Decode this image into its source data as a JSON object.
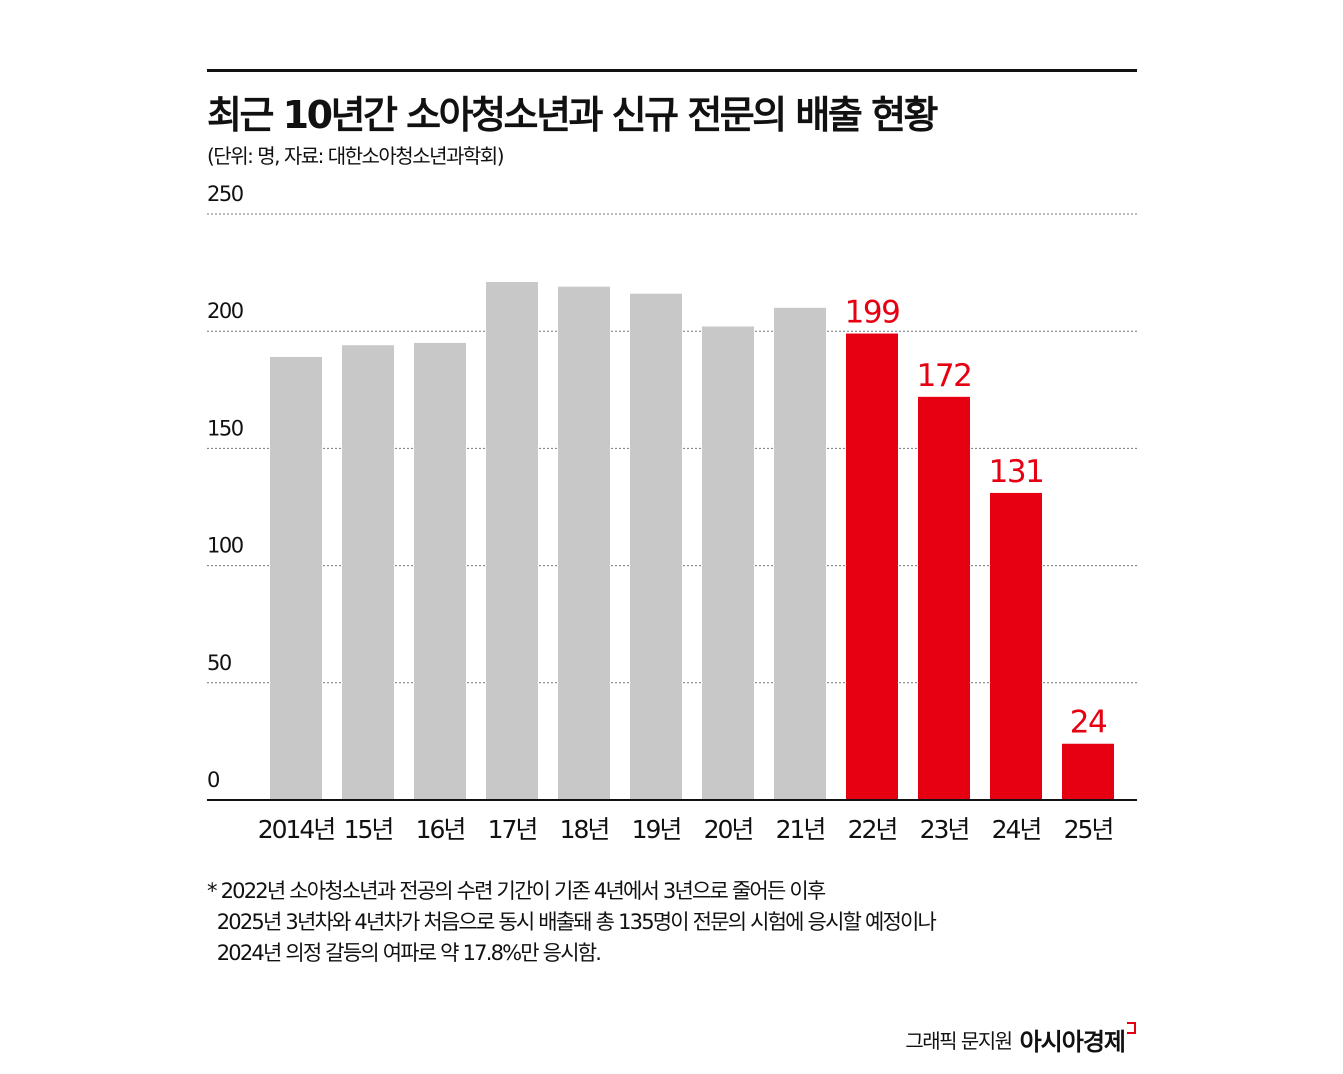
{
  "title": "최근 10년간 소아청소년과 신규 전문의 배출 현황",
  "subtitle": "(단위: 명, 자료: 대한소아청소년과학회)",
  "chart_data": {
    "type": "bar",
    "categories": [
      "2014년",
      "15년",
      "16년",
      "17년",
      "18년",
      "19년",
      "20년",
      "21년",
      "22년",
      "23년",
      "24년",
      "25년"
    ],
    "values": [
      189,
      194,
      195,
      221,
      219,
      216,
      202,
      210,
      199,
      172,
      131,
      24
    ],
    "data_labels": [
      null,
      null,
      null,
      null,
      null,
      null,
      null,
      null,
      "199",
      "172",
      "131",
      "24"
    ],
    "highlighted": [
      false,
      false,
      false,
      false,
      false,
      false,
      false,
      false,
      true,
      true,
      true,
      true
    ],
    "ylim": [
      0,
      250
    ],
    "yticks": [
      0,
      50,
      100,
      150,
      200,
      250
    ],
    "grid": true,
    "colors": {
      "default": "#c8c8c8",
      "highlight": "#e60012"
    }
  },
  "footnote": [
    "* 2022년 소아청소년과 전공의 수련 기간이 기존 4년에서 3년으로 줄어든 이후",
    "  2025년 3년차와 4년차가 처음으로 동시 배출돼 총 135명이 전문의 시험에 응시할 예정이나",
    "  2024년 의정 갈등의 여파로 약 17.8%만 응시함."
  ],
  "credit": "그래픽 문지원",
  "logo": "아시아경제"
}
